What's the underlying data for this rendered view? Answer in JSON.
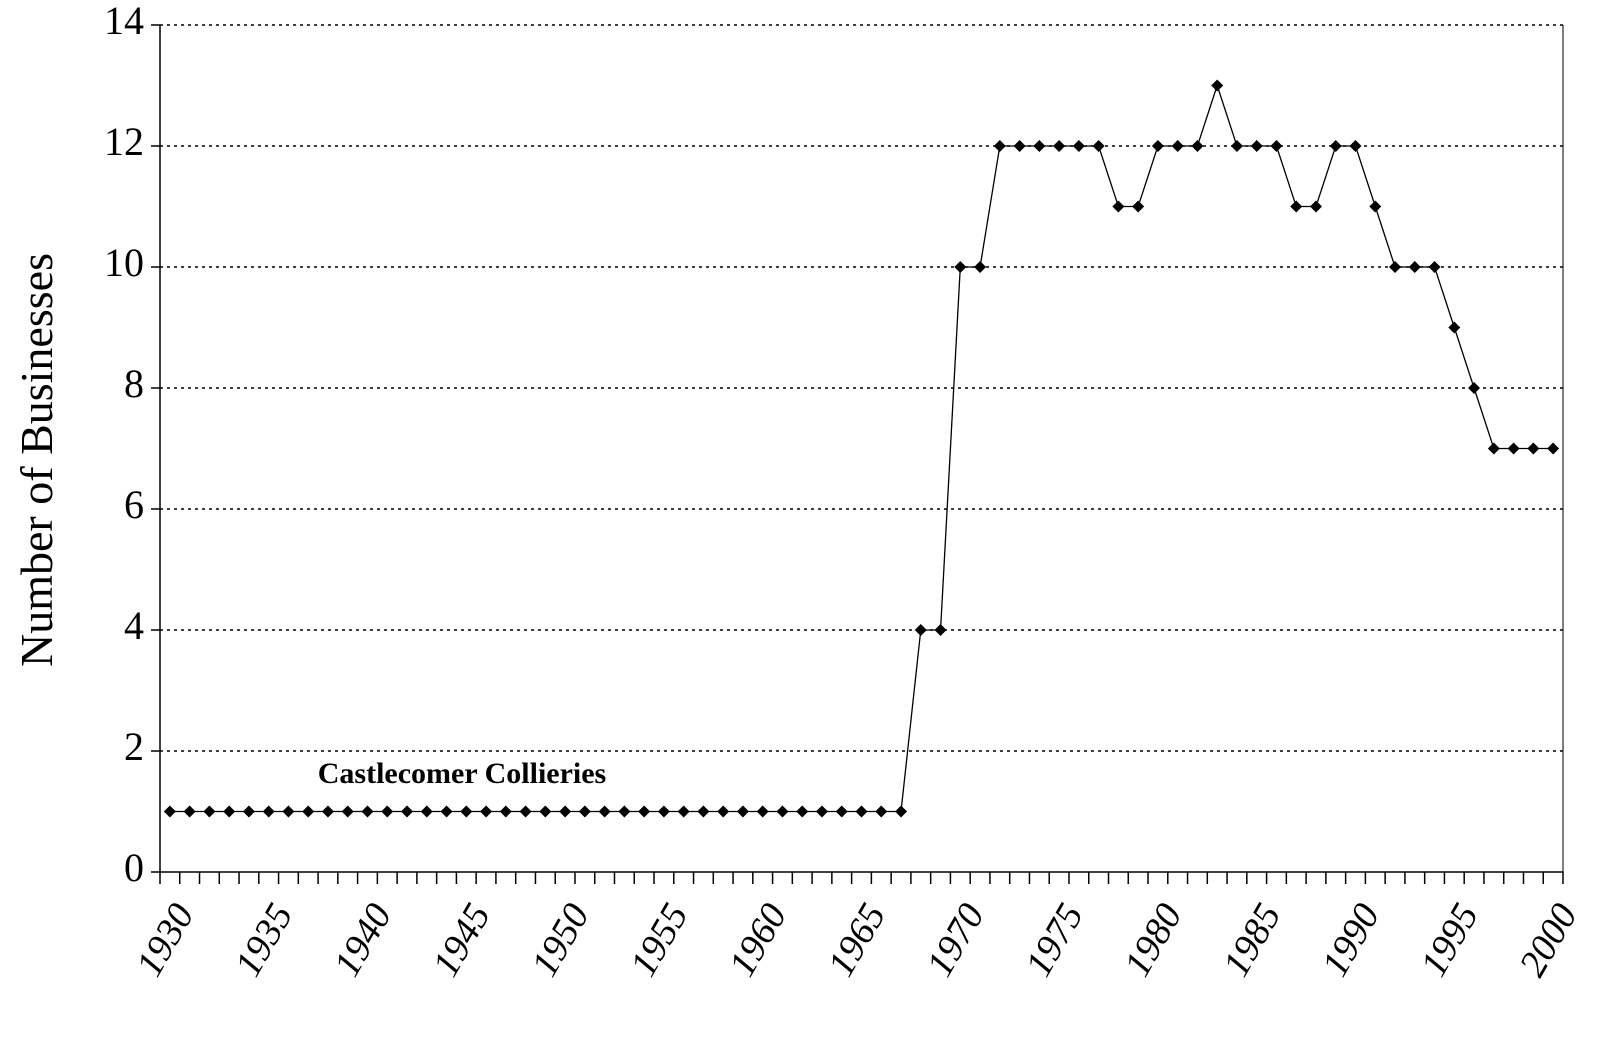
{
  "chart_data": {
    "type": "line",
    "y_label": "Number of Businesses",
    "annotation": "Castlecomer Collieries",
    "categories": [
      "1930",
      null,
      null,
      null,
      null,
      "1935",
      null,
      null,
      null,
      null,
      "1940",
      null,
      null,
      null,
      null,
      "1945",
      null,
      null,
      null,
      null,
      "1950",
      null,
      null,
      null,
      null,
      "1955",
      null,
      null,
      null,
      null,
      "1960",
      null,
      null,
      null,
      null,
      "1965",
      null,
      null,
      null,
      null,
      "1970",
      null,
      null,
      null,
      null,
      "1975",
      null,
      null,
      null,
      null,
      "1980",
      null,
      null,
      null,
      null,
      "1985",
      null,
      null,
      null,
      null,
      "1990",
      null,
      null,
      null,
      null,
      "1995",
      null,
      null,
      null,
      null,
      "2000"
    ],
    "values": [
      1,
      1,
      1,
      1,
      1,
      1,
      1,
      1,
      1,
      1,
      1,
      1,
      1,
      1,
      1,
      1,
      1,
      1,
      1,
      1,
      1,
      1,
      1,
      1,
      1,
      1,
      1,
      1,
      1,
      1,
      1,
      1,
      1,
      1,
      1,
      1,
      1,
      1,
      4,
      4,
      10,
      10,
      12,
      12,
      12,
      12,
      12,
      12,
      11,
      11,
      12,
      12,
      12,
      13,
      12,
      12,
      12,
      11,
      11,
      12,
      12,
      11,
      10,
      10,
      10,
      9,
      8,
      7,
      7,
      7,
      7
    ],
    "color": "#000000",
    "ylim": [
      0,
      14
    ],
    "yticks": [
      0,
      2,
      4,
      6,
      8,
      10,
      12,
      14
    ],
    "grid": true
  }
}
